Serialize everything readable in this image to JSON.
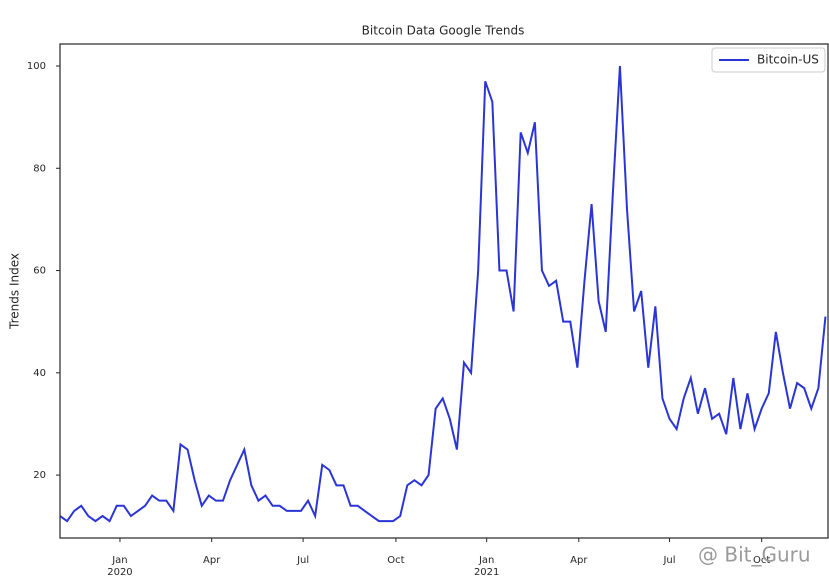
{
  "chart_data": {
    "type": "line",
    "title": "Bitcoin Data Google Trends",
    "y_label": "Trends Index",
    "watermark": "@ Bit_Guru",
    "x": [
      0,
      1,
      2,
      3,
      4,
      5,
      6,
      7,
      8,
      9,
      10,
      11,
      12,
      13,
      14,
      15,
      16,
      17,
      18,
      19,
      20,
      21,
      22,
      23,
      24,
      25,
      26,
      27,
      28,
      29,
      30,
      31,
      32,
      33,
      34,
      35,
      36,
      37,
      38,
      39,
      40,
      41,
      42,
      43,
      44,
      45,
      46,
      47,
      48,
      49,
      50,
      51,
      52,
      53,
      54,
      55,
      56,
      57,
      58,
      59,
      60,
      61,
      62,
      63,
      64,
      65,
      66,
      67,
      68,
      69,
      70,
      71,
      72,
      73,
      74,
      75,
      76,
      77,
      78,
      79,
      80,
      81,
      82,
      83,
      84,
      85,
      86,
      87,
      88,
      89,
      90,
      91,
      92,
      93,
      94,
      95,
      96,
      97,
      98,
      99,
      100,
      101,
      102,
      103,
      104,
      105,
      106,
      107,
      108
    ],
    "series": [
      {
        "name": "Bitcoin-US",
        "color": "#2b35d6",
        "values": [
          12,
          11,
          13,
          14,
          12,
          11,
          12,
          11,
          14,
          14,
          12,
          13,
          14,
          16,
          15,
          15,
          13,
          26,
          25,
          19,
          14,
          16,
          15,
          15,
          19,
          22,
          25,
          18,
          15,
          16,
          14,
          14,
          13,
          13,
          13,
          15,
          12,
          22,
          21,
          18,
          18,
          14,
          14,
          13,
          12,
          11,
          11,
          11,
          12,
          18,
          19,
          18,
          20,
          33,
          35,
          31,
          25,
          42,
          40,
          60,
          97,
          93,
          60,
          60,
          52,
          87,
          83,
          89,
          60,
          57,
          58,
          50,
          50,
          41,
          58,
          73,
          54,
          48,
          75,
          100,
          72,
          52,
          56,
          41,
          53,
          35,
          31,
          29,
          35,
          39,
          32,
          37,
          31,
          32,
          28,
          39,
          29,
          36,
          29,
          33,
          36,
          48,
          40,
          33,
          38,
          37,
          33,
          37,
          51
        ]
      }
    ],
    "xlim": [
      0,
      108.5
    ],
    "xticks": [
      {
        "value": 8.46,
        "label": "Jan"
      },
      {
        "value": 21.4,
        "label": "Apr"
      },
      {
        "value": 34.3,
        "label": "Jul"
      },
      {
        "value": 47.4,
        "label": "Oct"
      },
      {
        "value": 60.2,
        "label": "Jan"
      },
      {
        "value": 73.2,
        "label": "Apr"
      },
      {
        "value": 86.0,
        "label": "Jul"
      },
      {
        "value": 99.0,
        "label": "Oct"
      }
    ],
    "year_labels": [
      {
        "value": 8.46,
        "label": "2020"
      },
      {
        "value": 60.2,
        "label": "2021"
      }
    ],
    "ylim": [
      7.7,
      104.3
    ],
    "yticks": [
      20,
      40,
      60,
      80,
      100
    ],
    "grid": false,
    "legend": "upper right"
  }
}
